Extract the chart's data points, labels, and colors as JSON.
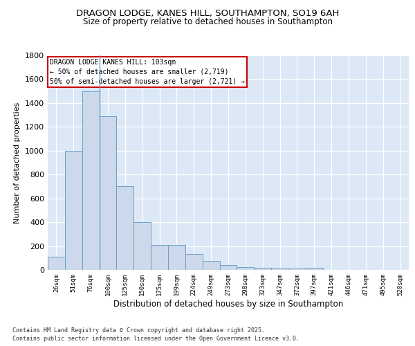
{
  "title": "DRAGON LODGE, KANES HILL, SOUTHAMPTON, SO19 6AH",
  "subtitle": "Size of property relative to detached houses in Southampton",
  "categories": [
    "26sqm",
    "51sqm",
    "76sqm",
    "100sqm",
    "125sqm",
    "150sqm",
    "175sqm",
    "199sqm",
    "224sqm",
    "249sqm",
    "273sqm",
    "298sqm",
    "323sqm",
    "347sqm",
    "372sqm",
    "397sqm",
    "421sqm",
    "446sqm",
    "471sqm",
    "495sqm",
    "520sqm"
  ],
  "values": [
    110,
    1000,
    1500,
    1290,
    700,
    400,
    210,
    210,
    135,
    75,
    40,
    25,
    20,
    10,
    10,
    15,
    0,
    0,
    0,
    0,
    0
  ],
  "bar_color": "#cdd9ea",
  "bar_edge_color": "#6b9ec8",
  "bg_color": "#dce8f5",
  "grid_color": "#ffffff",
  "ylabel": "Number of detached properties",
  "xlabel": "Distribution of detached houses by size in Southampton",
  "annotation_title": "DRAGON LODGE KANES HILL: 103sqm",
  "annotation_line1": "← 50% of detached houses are smaller (2,719)",
  "annotation_line2": "50% of semi-detached houses are larger (2,721) →",
  "annotation_box_color": "#ffffff",
  "annotation_box_edge": "#cc0000",
  "footer_line1": "Contains HM Land Registry data © Crown copyright and database right 2025.",
  "footer_line2": "Contains public sector information licensed under the Open Government Licence v3.0.",
  "ylim": [
    0,
    1800
  ],
  "yticks": [
    0,
    200,
    400,
    600,
    800,
    1000,
    1200,
    1400,
    1600,
    1800
  ],
  "title_fontsize": 9.5,
  "subtitle_fontsize": 8.5,
  "bar_vline_x": 2.5
}
